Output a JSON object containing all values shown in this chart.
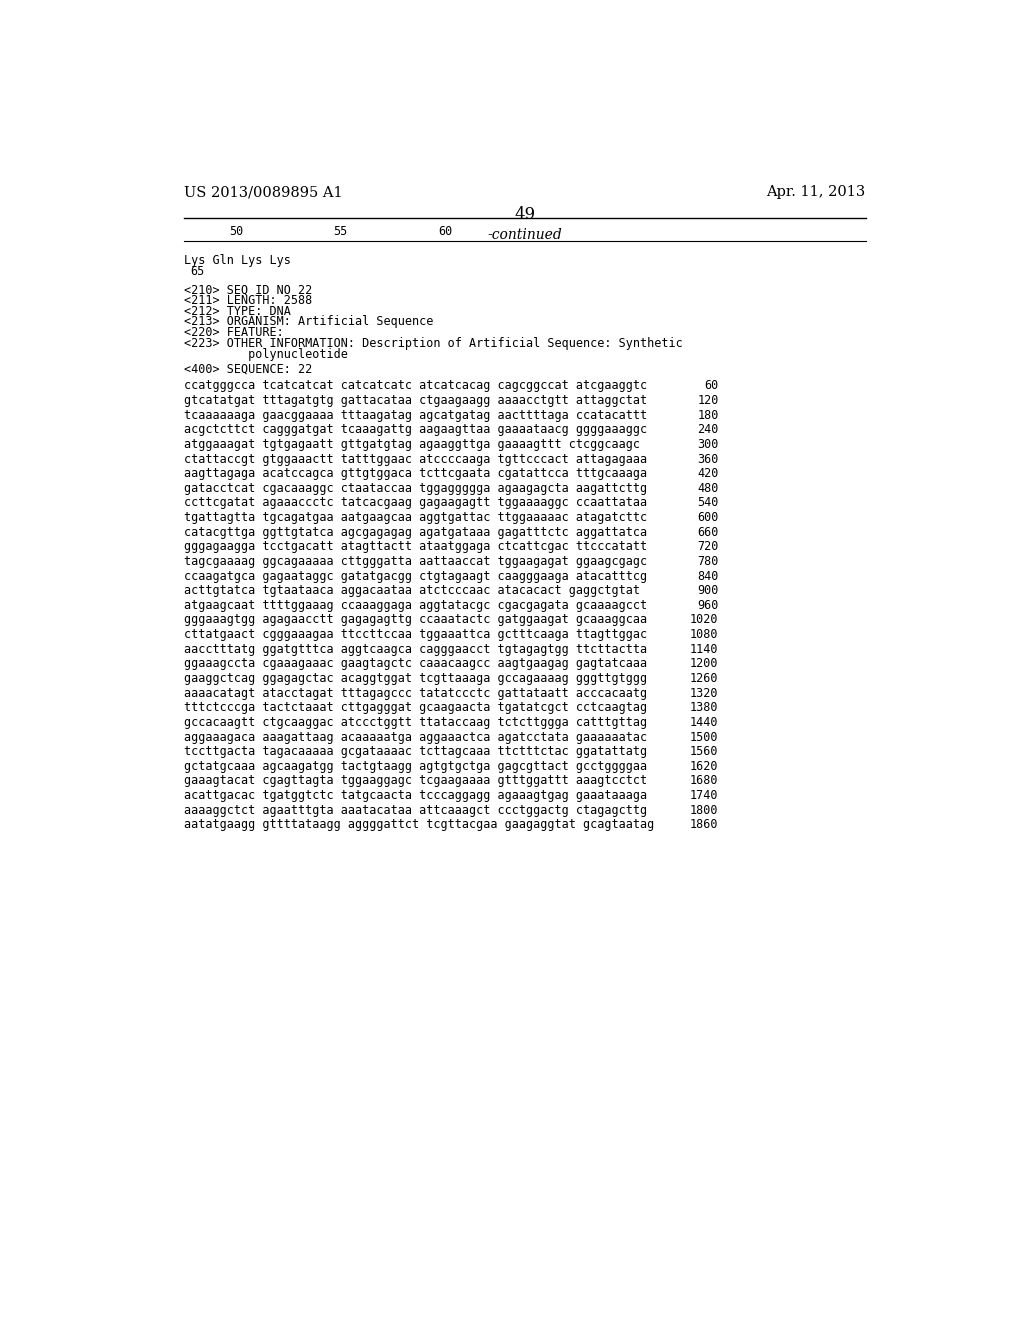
{
  "left_header": "US 2013/0089895 A1",
  "right_header": "Apr. 11, 2013",
  "page_number": "49",
  "continued_label": "-continued",
  "background_color": "#ffffff",
  "text_color": "#000000",
  "ruler_numbers": [
    "50",
    "55",
    "60"
  ],
  "amino_acids_line1": "Lys Gln Lys Lys",
  "amino_acids_line2": "65",
  "seq_info": [
    "<210> SEQ ID NO 22",
    "<211> LENGTH: 2588",
    "<212> TYPE: DNA",
    "<213> ORGANISM: Artificial Sequence",
    "<220> FEATURE:",
    "<223> OTHER INFORMATION: Description of Artificial Sequence: Synthetic",
    "         polynucleotide"
  ],
  "seq400": "<400> SEQUENCE: 22",
  "sequence_lines": [
    [
      "ccatgggcca tcatcatcat catcatcatc atcatcacag cagcggccat atcgaaggtc",
      "60"
    ],
    [
      "gtcatatgat tttagatgtg gattacataa ctgaagaagg aaaacctgtt attaggctat",
      "120"
    ],
    [
      "tcaaaaaaga gaacggaaaa tttaagatag agcatgatag aacttttaga ccatacattt",
      "180"
    ],
    [
      "acgctcttct cagggatgat tcaaagattg aagaagttaa gaaaataacg ggggaaaggc",
      "240"
    ],
    [
      "atggaaagat tgtgagaatt gttgatgtag agaaggttga gaaaagttt ctcggcaagc",
      "300"
    ],
    [
      "ctattaccgt gtggaaactt tatttggaac atccccaaga tgttcccact attagagaaa",
      "360"
    ],
    [
      "aagttagaga acatccagca gttgtggaca tcttcgaata cgatattcca tttgcaaaga",
      "420"
    ],
    [
      "gatacctcat cgacaaaggc ctaataccaa tggaggggga agaagagcta aagattcttg",
      "480"
    ],
    [
      "ccttcgatat agaaaccctc tatcacgaag gagaagagtt tggaaaaggc ccaattataa",
      "540"
    ],
    [
      "tgattagtta tgcagatgaa aatgaagcaa aggtgattac ttggaaaaac atagatcttc",
      "600"
    ],
    [
      "catacgttga ggttgtatca agcgagagag agatgataaa gagatttctc aggattatca",
      "660"
    ],
    [
      "gggagaagga tcctgacatt atagttactt ataatggaga ctcattcgac ttcccatatt",
      "720"
    ],
    [
      "tagcgaaaag ggcagaaaaa cttgggatta aattaaccat tggaagagat ggaagcgagc",
      "780"
    ],
    [
      "ccaagatgca gagaataggc gatatgacgg ctgtagaagt caagggaaga atacatttcg",
      "840"
    ],
    [
      "acttgtatca tgtaataaca aggacaataa atctcccaac atacacact gaggctgtat",
      "900"
    ],
    [
      "atgaagcaat ttttggaaag ccaaaggaga aggtatacgc cgacgagata gcaaaagcct",
      "960"
    ],
    [
      "gggaaagtgg agagaacctt gagagagttg ccaaatactc gatggaagat gcaaaggcaa",
      "1020"
    ],
    [
      "cttatgaact cgggaaagaa ttccttccaa tggaaattca gctttcaaga ttagttggac",
      "1080"
    ],
    [
      "aacctttatg ggatgtttca aggtcaagca cagggaacct tgtagagtgg ttcttactta",
      "1140"
    ],
    [
      "ggaaagccta cgaaagaaac gaagtagctc caaacaagcc aagtgaagag gagtatcaaa",
      "1200"
    ],
    [
      "gaaggctcag ggagagctac acaggtggat tcgttaaaga gccagaaaag gggttgtggg",
      "1260"
    ],
    [
      "aaaacatagt atacctagat tttagagccc tatatccctc gattataatt acccacaatg",
      "1320"
    ],
    [
      "tttctcccga tactctaaat cttgagggat gcaagaacta tgatatcgct cctcaagtag",
      "1380"
    ],
    [
      "gccacaagtt ctgcaaggac atccctggtt ttataccaag tctcttggga catttgttag",
      "1440"
    ],
    [
      "aggaaagaca aaagattaag acaaaaatga aggaaactca agatcctata gaaaaaatac",
      "1500"
    ],
    [
      "tccttgacta tagacaaaaa gcgataaaac tcttagcaaa ttctttctac ggatattatg",
      "1560"
    ],
    [
      "gctatgcaaa agcaagatgg tactgtaagg agtgtgctga gagcgttact gcctggggaa",
      "1620"
    ],
    [
      "gaaagtacat cgagttagta tggaaggagc tcgaagaaaa gtttggattt aaagtcctct",
      "1680"
    ],
    [
      "acattgacac tgatggtctc tatgcaacta tcccaggagg agaaagtgag gaaataaaga",
      "1740"
    ],
    [
      "aaaaggctct agaatttgta aaatacataa attcaaagct ccctggactg ctagagcttg",
      "1800"
    ],
    [
      "aatatgaagg gttttataagg aggggattct tcgttacgaa gaagaggtat gcagtaatag",
      "1860"
    ]
  ]
}
